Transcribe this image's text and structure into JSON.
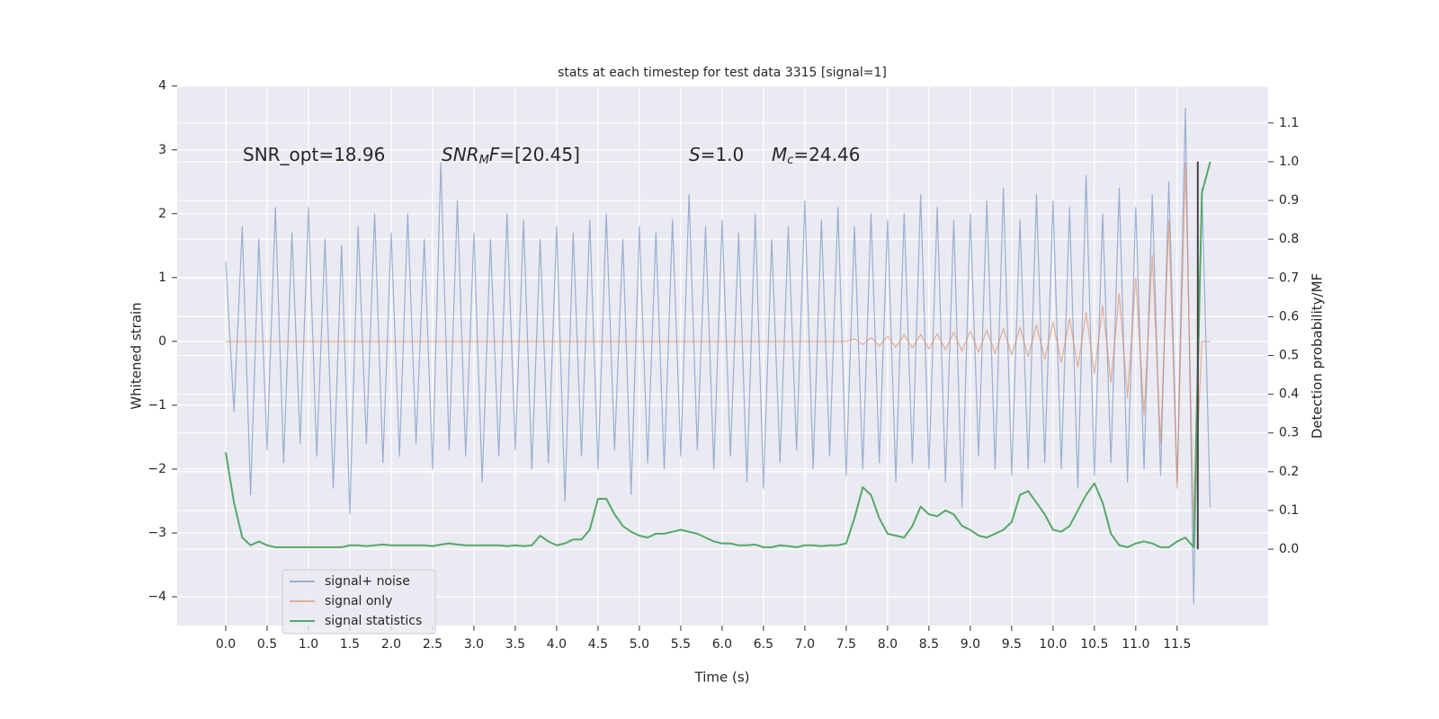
{
  "chart_data": {
    "type": "line",
    "title": "stats at each timestep for test data 3315 [signal=1]",
    "xlabel": "Time (s)",
    "ylabel": "Whitened strain",
    "y2label": "Detection probability/MF",
    "xlim": [
      -0.587,
      12.6
    ],
    "ylim": [
      -4.45,
      4.01
    ],
    "y2lim": [
      -0.197,
      1.197
    ],
    "xticks": [
      {
        "value": 0,
        "label": "0.0"
      },
      0.5,
      {
        "value": 1,
        "label": "1.0"
      },
      1.5,
      {
        "value": 2,
        "label": "2.0"
      },
      2.5,
      {
        "value": 3,
        "label": "3.0"
      },
      3.5,
      {
        "value": 4,
        "label": "4.0"
      },
      4.5,
      {
        "value": 5,
        "label": "5.0"
      },
      5.5,
      {
        "value": 6,
        "label": "6.0"
      },
      6.5,
      {
        "value": 7,
        "label": "7.0"
      },
      7.5,
      {
        "value": 8,
        "label": "8.0"
      },
      8.5,
      {
        "value": 9,
        "label": "9.0"
      },
      9.5,
      {
        "value": 10,
        "label": "10.0"
      },
      10.5,
      {
        "value": 11,
        "label": "11.0"
      },
      11.5
    ],
    "yticks": [
      {
        "value": -4,
        "label": "−4"
      },
      {
        "value": -3,
        "label": "−3"
      },
      {
        "value": -2,
        "label": "−2"
      },
      {
        "value": -1,
        "label": "−1"
      },
      0,
      1,
      2,
      3,
      4
    ],
    "y2ticks": [
      {
        "value": 0,
        "label": "0.0"
      },
      0.1,
      0.2,
      0.3,
      0.4,
      0.5,
      0.6,
      0.7,
      0.8,
      0.9,
      {
        "value": 1,
        "label": "1.0"
      },
      1.1
    ],
    "grid": true,
    "legend": "lower left",
    "x": [
      0,
      0.1,
      0.2,
      0.3,
      0.4,
      0.5,
      0.6,
      0.7,
      0.8,
      0.9,
      1,
      1.1,
      1.2,
      1.3,
      1.4,
      1.5,
      1.6,
      1.7,
      1.8,
      1.9,
      2,
      2.1,
      2.2,
      2.3,
      2.4,
      2.5,
      2.6,
      2.7,
      2.8,
      2.9,
      3,
      3.1,
      3.2,
      3.3,
      3.4,
      3.5,
      3.6,
      3.7,
      3.8,
      3.9,
      4,
      4.1,
      4.2,
      4.3,
      4.4,
      4.5,
      4.6,
      4.7,
      4.8,
      4.9,
      5,
      5.1,
      5.2,
      5.3,
      5.4,
      5.5,
      5.6,
      5.7,
      5.8,
      5.9,
      6,
      6.1,
      6.2,
      6.3,
      6.4,
      6.5,
      6.6,
      6.7,
      6.8,
      6.9,
      7,
      7.1,
      7.2,
      7.3,
      7.4,
      7.5,
      7.6,
      7.7,
      7.8,
      7.9,
      8,
      8.1,
      8.2,
      8.3,
      8.4,
      8.5,
      8.6,
      8.7,
      8.8,
      8.9,
      9,
      9.1,
      9.2,
      9.3,
      9.4,
      9.5,
      9.6,
      9.7,
      9.8,
      9.9,
      10,
      10.1,
      10.2,
      10.3,
      10.4,
      10.5,
      10.6,
      10.7,
      10.8,
      10.9,
      11,
      11.1,
      11.2,
      11.3,
      11.4,
      11.5,
      11.6,
      11.7,
      11.8,
      11.9
    ],
    "series": [
      {
        "name": "signal+ noise",
        "color": "#4c72b0",
        "opacity": 0.5,
        "values": [
          1.25,
          -1.1,
          1.8,
          -2.4,
          1.6,
          -1.7,
          2.1,
          -1.9,
          1.7,
          -1.6,
          2.1,
          -1.8,
          1.6,
          -2.3,
          1.5,
          -2.7,
          1.8,
          -1.6,
          2.0,
          -1.9,
          1.7,
          -1.8,
          2.0,
          -1.6,
          1.6,
          -2.0,
          2.8,
          -1.7,
          2.2,
          -1.8,
          1.7,
          -2.2,
          1.6,
          -1.8,
          2.0,
          -1.7,
          1.9,
          -2.0,
          1.6,
          -1.9,
          1.8,
          -2.5,
          1.7,
          -1.8,
          1.9,
          -2.0,
          2.0,
          -1.7,
          1.6,
          -2.4,
          1.8,
          -1.9,
          1.7,
          -2.0,
          1.9,
          -1.8,
          2.3,
          -1.7,
          1.8,
          -2.0,
          1.9,
          -1.8,
          1.7,
          -2.2,
          2.0,
          -2.3,
          1.6,
          -1.9,
          1.8,
          -1.7,
          2.2,
          -2.0,
          1.9,
          -1.8,
          2.1,
          -2.1,
          1.8,
          -2.0,
          2.0,
          -1.9,
          1.9,
          -2.2,
          2.0,
          -1.9,
          2.3,
          -2.0,
          2.1,
          -2.2,
          1.9,
          -2.6,
          2.0,
          -1.8,
          2.2,
          -2.0,
          2.4,
          -2.1,
          1.9,
          -2.0,
          2.3,
          -1.9,
          2.2,
          -2.0,
          2.1,
          -2.3,
          2.6,
          -2.1,
          2.0,
          -1.9,
          2.4,
          -2.2,
          2.1,
          -2.0,
          2.3,
          -2.1,
          2.5,
          -2.2,
          3.65,
          -4.1,
          2.4,
          -2.6
        ]
      },
      {
        "name": "signal only",
        "color": "#dd8452",
        "opacity": 0.6,
        "values": [
          0,
          0,
          0,
          0,
          0,
          0,
          0,
          0,
          0,
          0,
          0,
          0,
          0,
          0,
          0,
          0,
          0,
          0,
          0,
          0,
          0,
          0,
          0,
          0,
          0,
          0,
          0,
          0,
          0,
          0,
          0,
          0,
          0,
          0,
          0,
          0,
          0,
          0,
          0,
          0,
          0,
          0,
          0,
          0,
          0,
          0,
          0,
          0,
          0,
          0,
          0,
          0,
          0,
          0,
          0,
          0,
          0,
          0,
          0,
          0,
          0,
          0,
          0,
          0,
          0,
          0,
          0,
          0,
          0,
          0,
          0,
          0,
          0,
          0,
          0,
          0,
          0.04,
          -0.05,
          0.06,
          -0.07,
          0.08,
          -0.09,
          0.1,
          -0.1,
          0.11,
          -0.12,
          0.12,
          -0.13,
          0.14,
          -0.15,
          0.16,
          -0.17,
          0.18,
          -0.19,
          0.2,
          -0.21,
          0.22,
          -0.24,
          0.26,
          -0.28,
          0.3,
          -0.33,
          0.36,
          -0.4,
          0.45,
          -0.5,
          0.56,
          -0.64,
          0.75,
          -0.88,
          1.0,
          -1.15,
          1.35,
          -1.6,
          1.9,
          -2.3,
          2.8,
          -2.9,
          0,
          0
        ]
      },
      {
        "name": "signal statistics",
        "color": "#55a868",
        "opacity": 1,
        "axis": "y2",
        "values": [
          0.25,
          0.12,
          0.03,
          0.01,
          0.02,
          0.01,
          0.005,
          0.005,
          0.005,
          0.005,
          0.005,
          0.005,
          0.005,
          0.005,
          0.005,
          0.01,
          0.01,
          0.008,
          0.01,
          0.012,
          0.01,
          0.01,
          0.01,
          0.01,
          0.01,
          0.008,
          0.012,
          0.015,
          0.012,
          0.01,
          0.01,
          0.01,
          0.01,
          0.01,
          0.008,
          0.01,
          0.008,
          0.01,
          0.035,
          0.02,
          0.01,
          0.015,
          0.025,
          0.025,
          0.05,
          0.13,
          0.13,
          0.09,
          0.06,
          0.045,
          0.035,
          0.03,
          0.04,
          0.04,
          0.045,
          0.05,
          0.045,
          0.04,
          0.03,
          0.02,
          0.015,
          0.015,
          0.01,
          0.01,
          0.012,
          0.005,
          0.005,
          0.01,
          0.008,
          0.005,
          0.01,
          0.01,
          0.008,
          0.01,
          0.01,
          0.015,
          0.08,
          0.16,
          0.14,
          0.08,
          0.04,
          0.035,
          0.03,
          0.06,
          0.11,
          0.09,
          0.085,
          0.1,
          0.09,
          0.06,
          0.05,
          0.035,
          0.03,
          0.04,
          0.05,
          0.07,
          0.14,
          0.15,
          0.12,
          0.09,
          0.05,
          0.045,
          0.06,
          0.1,
          0.14,
          0.17,
          0.12,
          0.04,
          0.01,
          0.005,
          0.015,
          0.02,
          0.015,
          0.005,
          0.005,
          0.02,
          0.03,
          0.005,
          0.92,
          1.0
        ]
      }
    ],
    "vline": {
      "x": 11.75,
      "y2": [
        0,
        1
      ],
      "color": "#444444"
    },
    "annotations": [
      [
        {
          "text": "SNR_opt=18.96",
          "style": "normal"
        }
      ],
      [
        {
          "text": "SNR",
          "style": "italic"
        },
        {
          "text": "M",
          "style": "sub"
        },
        {
          "text": "F",
          "style": "italic"
        },
        {
          "text": "=[20.45]",
          "style": "normal"
        }
      ],
      [
        {
          "text": "S",
          "style": "italic"
        },
        {
          "text": "=1.0",
          "style": "normal"
        }
      ],
      [
        {
          "text": "M",
          "style": "italic"
        },
        {
          "text": "c",
          "style": "sub"
        },
        {
          "text": "=24.46",
          "style": "normal"
        }
      ]
    ]
  }
}
